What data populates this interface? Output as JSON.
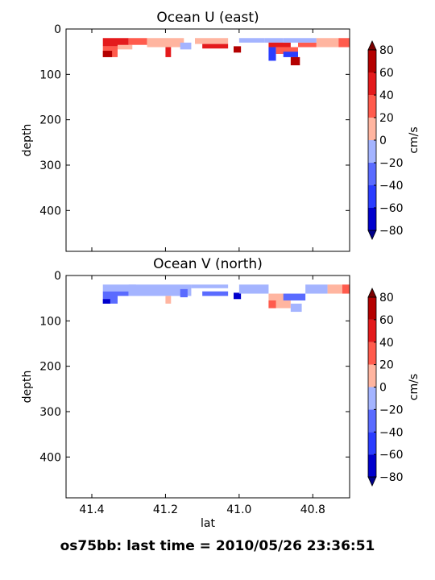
{
  "figure": {
    "footer": "os75bb: last time = 2010/05/26 23:36:51"
  },
  "chart_data": [
    {
      "type": "heatmap",
      "title": "Ocean U (east)",
      "xlabel": "",
      "ylabel": "depth",
      "xlim": [
        41.47,
        40.7
      ],
      "ylim": [
        490,
        0
      ],
      "x_ticks": [
        "41.4",
        "41.2",
        "41.0",
        "40.8"
      ],
      "x_tick_values": [
        41.4,
        41.2,
        41.0,
        40.8
      ],
      "y_ticks": [
        "0",
        "100",
        "200",
        "300",
        "400"
      ],
      "y_tick_values": [
        0,
        100,
        200,
        300,
        400
      ],
      "colorbar": {
        "label": "cm/s",
        "levels": [
          -80,
          -60,
          -40,
          -20,
          0,
          20,
          40,
          60,
          80
        ],
        "tick_labels": [
          "−80",
          "−60",
          "−40",
          "−20",
          "0",
          "20",
          "40",
          "60",
          "80"
        ],
        "colors": [
          "#0000cd",
          "#2a3dff",
          "#5a6bff",
          "#a4b4ff",
          "#ffb5a0",
          "#ff5b4d",
          "#e41a1c",
          "#b40000"
        ],
        "extend_low_color": "#00008b",
        "extend_high_color": "#7a0000"
      },
      "cells": [
        {
          "lat0": 41.37,
          "lat1": 41.3,
          "d0": 20,
          "d1": 38,
          "value": 55
        },
        {
          "lat0": 41.37,
          "lat1": 41.33,
          "d0": 38,
          "d1": 62,
          "value": 35
        },
        {
          "lat0": 41.37,
          "lat1": 41.345,
          "d0": 48,
          "d1": 62,
          "value": 70
        },
        {
          "lat0": 41.33,
          "lat1": 41.29,
          "d0": 35,
          "d1": 45,
          "value": 15
        },
        {
          "lat0": 41.3,
          "lat1": 41.25,
          "d0": 20,
          "d1": 35,
          "value": 25
        },
        {
          "lat0": 41.25,
          "lat1": 41.15,
          "d0": 20,
          "d1": 40,
          "value": 12
        },
        {
          "lat0": 41.2,
          "lat1": 41.185,
          "d0": 40,
          "d1": 62,
          "value": 40
        },
        {
          "lat0": 41.16,
          "lat1": 41.13,
          "d0": 30,
          "d1": 45,
          "value": -15
        },
        {
          "lat0": 41.12,
          "lat1": 41.03,
          "d0": 20,
          "d1": 33,
          "value": 8
        },
        {
          "lat0": 41.1,
          "lat1": 41.03,
          "d0": 33,
          "d1": 43,
          "value": 45
        },
        {
          "lat0": 41.015,
          "lat1": 40.995,
          "d0": 38,
          "d1": 52,
          "value": 72
        },
        {
          "lat0": 41.0,
          "lat1": 40.93,
          "d0": 20,
          "d1": 30,
          "value": -12
        },
        {
          "lat0": 40.93,
          "lat1": 40.88,
          "d0": 20,
          "d1": 30,
          "value": -10
        },
        {
          "lat0": 40.92,
          "lat1": 40.86,
          "d0": 30,
          "d1": 40,
          "value": 42
        },
        {
          "lat0": 40.92,
          "lat1": 40.9,
          "d0": 40,
          "d1": 70,
          "value": -45
        },
        {
          "lat0": 40.9,
          "lat1": 40.84,
          "d0": 40,
          "d1": 55,
          "value": 28
        },
        {
          "lat0": 40.88,
          "lat1": 40.84,
          "d0": 50,
          "d1": 62,
          "value": -60
        },
        {
          "lat0": 40.86,
          "lat1": 40.835,
          "d0": 62,
          "d1": 80,
          "value": 65
        },
        {
          "lat0": 40.84,
          "lat1": 40.79,
          "d0": 30,
          "d1": 40,
          "value": 22
        },
        {
          "lat0": 40.88,
          "lat1": 40.79,
          "d0": 20,
          "d1": 30,
          "value": -15
        },
        {
          "lat0": 40.79,
          "lat1": 40.73,
          "d0": 20,
          "d1": 40,
          "value": 12
        },
        {
          "lat0": 40.73,
          "lat1": 40.7,
          "d0": 20,
          "d1": 40,
          "value": 35
        }
      ]
    },
    {
      "type": "heatmap",
      "title": "Ocean V (north)",
      "xlabel": "lat",
      "ylabel": "depth",
      "xlim": [
        41.47,
        40.7
      ],
      "ylim": [
        490,
        0
      ],
      "x_ticks": [
        "41.4",
        "41.2",
        "41.0",
        "40.8"
      ],
      "x_tick_values": [
        41.4,
        41.2,
        41.0,
        40.8
      ],
      "y_ticks": [
        "0",
        "100",
        "200",
        "300",
        "400"
      ],
      "y_tick_values": [
        0,
        100,
        200,
        300,
        400
      ],
      "colorbar": {
        "label": "cm/s",
        "levels": [
          -80,
          -60,
          -40,
          -20,
          0,
          20,
          40,
          60,
          80
        ],
        "tick_labels": [
          "−80",
          "−60",
          "−40",
          "−20",
          "0",
          "20",
          "40",
          "60",
          "80"
        ],
        "colors": [
          "#0000cd",
          "#2a3dff",
          "#5a6bff",
          "#a4b4ff",
          "#ffb5a0",
          "#ff5b4d",
          "#e41a1c",
          "#b40000"
        ],
        "extend_low_color": "#00008b",
        "extend_high_color": "#7a0000"
      },
      "cells": [
        {
          "lat0": 41.37,
          "lat1": 41.28,
          "d0": 20,
          "d1": 35,
          "value": -12
        },
        {
          "lat0": 41.37,
          "lat1": 41.33,
          "d0": 35,
          "d1": 62,
          "value": -35
        },
        {
          "lat0": 41.37,
          "lat1": 41.35,
          "d0": 52,
          "d1": 62,
          "value": -70
        },
        {
          "lat0": 41.33,
          "lat1": 41.3,
          "d0": 35,
          "d1": 45,
          "value": -25
        },
        {
          "lat0": 41.3,
          "lat1": 41.13,
          "d0": 20,
          "d1": 45,
          "value": -10
        },
        {
          "lat0": 41.2,
          "lat1": 41.185,
          "d0": 45,
          "d1": 62,
          "value": 12
        },
        {
          "lat0": 41.16,
          "lat1": 41.14,
          "d0": 30,
          "d1": 48,
          "value": -30
        },
        {
          "lat0": 41.13,
          "lat1": 41.03,
          "d0": 20,
          "d1": 28,
          "value": -10
        },
        {
          "lat0": 41.1,
          "lat1": 41.03,
          "d0": 35,
          "d1": 45,
          "value": -38
        },
        {
          "lat0": 41.015,
          "lat1": 40.995,
          "d0": 38,
          "d1": 52,
          "value": -72
        },
        {
          "lat0": 41.0,
          "lat1": 40.92,
          "d0": 20,
          "d1": 40,
          "value": -12
        },
        {
          "lat0": 40.92,
          "lat1": 40.86,
          "d0": 40,
          "d1": 72,
          "value": 12
        },
        {
          "lat0": 40.92,
          "lat1": 40.9,
          "d0": 55,
          "d1": 72,
          "value": 35
        },
        {
          "lat0": 40.88,
          "lat1": 40.82,
          "d0": 40,
          "d1": 55,
          "value": -35
        },
        {
          "lat0": 40.86,
          "lat1": 40.83,
          "d0": 62,
          "d1": 80,
          "value": -15
        },
        {
          "lat0": 40.82,
          "lat1": 40.76,
          "d0": 20,
          "d1": 40,
          "value": -10
        },
        {
          "lat0": 40.76,
          "lat1": 40.72,
          "d0": 20,
          "d1": 40,
          "value": 12
        },
        {
          "lat0": 40.72,
          "lat1": 40.7,
          "d0": 20,
          "d1": 40,
          "value": 38
        }
      ]
    }
  ]
}
